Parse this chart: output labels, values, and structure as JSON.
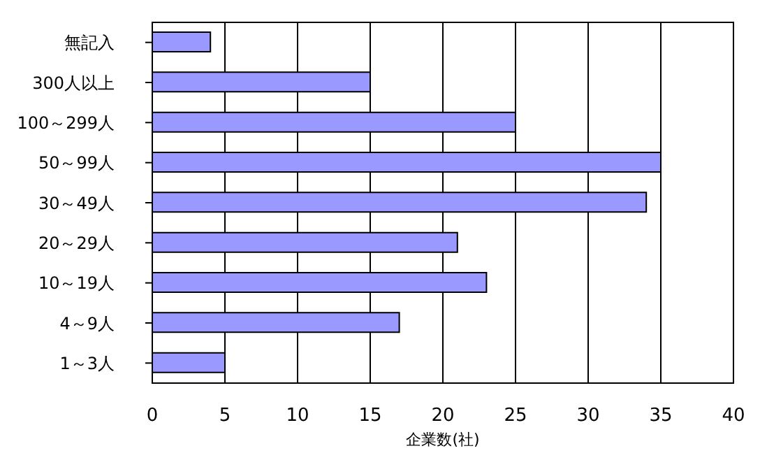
{
  "chart_data": {
    "type": "bar",
    "orientation": "horizontal",
    "xlabel": "企業数(社)",
    "categories": [
      "無記入",
      "300人以上",
      "100～299人",
      "50～99人",
      "30～49人",
      "20～29人",
      "10～19人",
      "4～9人",
      "1～3人"
    ],
    "values": [
      4,
      15,
      25,
      35,
      34,
      21,
      23,
      17,
      5
    ],
    "color": "#9999ff",
    "xlim": [
      0,
      40
    ],
    "xticks": [
      0,
      5,
      10,
      15,
      20,
      25,
      30,
      35,
      40
    ],
    "grid": "x"
  }
}
